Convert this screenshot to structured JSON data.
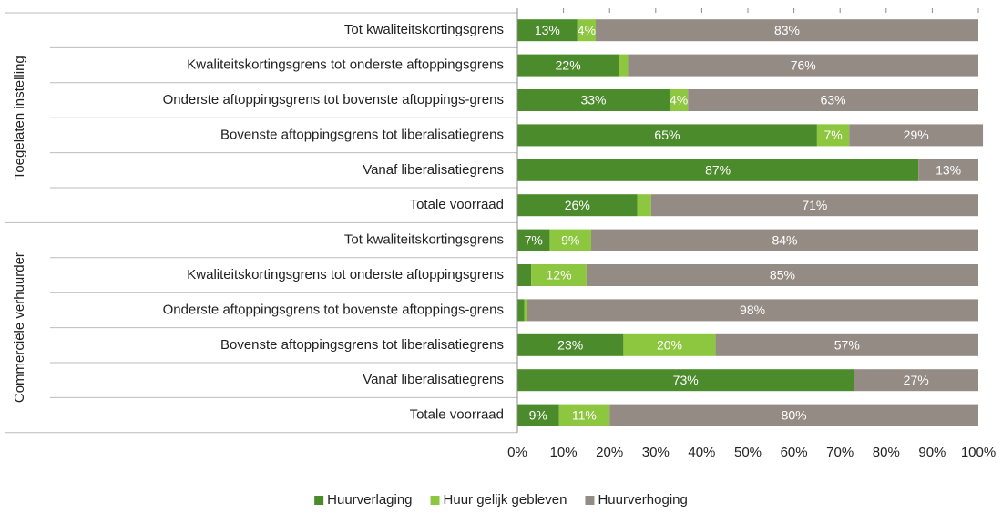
{
  "chart_data": {
    "type": "stacked-bar-horizontal",
    "groups": [
      {
        "label": "Toegelaten instelling",
        "categories": [
          "Tot kwaliteitskortingsgrens",
          "Kwaliteitskortingsgrens tot onderste aftoppingsgrens",
          "Onderste aftoppingsgrens tot bovenste aftoppings-grens",
          "Bovenste aftoppingsgrens tot liberalisatiegrens",
          "Vanaf liberalisatiegrens",
          "Totale voorraad"
        ]
      },
      {
        "label": "Commerciële verhuurder",
        "categories": [
          "Tot kwaliteitskortingsgrens",
          "Kwaliteitskortingsgrens tot onderste aftoppingsgrens",
          "Onderste aftoppingsgrens tot bovenste aftoppings-grens",
          "Bovenste aftoppingsgrens tot liberalisatiegrens",
          "Vanaf liberalisatiegrens",
          "Totale voorraad"
        ]
      }
    ],
    "series": [
      {
        "name": "Huurverlaging",
        "color": "#4b8b2b",
        "values": [
          13,
          22,
          33,
          65,
          87,
          26,
          7,
          3,
          1.5,
          23,
          73,
          9
        ],
        "value_labels": [
          "13%",
          "22%",
          "33%",
          "65%",
          "87%",
          "26%",
          "7%",
          null,
          null,
          "23%",
          "73%",
          "9%"
        ]
      },
      {
        "name": "Huur gelijk gebleven",
        "color": "#8dc63f",
        "values": [
          4,
          2,
          4,
          7,
          0,
          3,
          9,
          12,
          0.5,
          20,
          0,
          11
        ],
        "value_labels": [
          "4%",
          null,
          "4%",
          "7%",
          null,
          null,
          "9%",
          "12%",
          null,
          "20%",
          null,
          "11%"
        ]
      },
      {
        "name": "Huurverhoging",
        "color": "#958b85",
        "values": [
          83,
          76,
          63,
          29,
          13,
          71,
          84,
          85,
          98,
          57,
          27,
          80
        ],
        "value_labels": [
          "83%",
          "76%",
          "63%",
          "29%",
          "13%",
          "71%",
          "84%",
          "85%",
          "98%",
          "57%",
          "27%",
          "80%"
        ]
      }
    ],
    "xlim": [
      0,
      100
    ],
    "xticks": [
      {
        "value": 0,
        "label": "0%"
      },
      {
        "value": 10,
        "label": "10%"
      },
      {
        "value": 20,
        "label": "20%"
      },
      {
        "value": 30,
        "label": "30%"
      },
      {
        "value": 40,
        "label": "40%"
      },
      {
        "value": 50,
        "label": "50%"
      },
      {
        "value": 60,
        "label": "60%"
      },
      {
        "value": 70,
        "label": "70%"
      },
      {
        "value": 80,
        "label": "80%"
      },
      {
        "value": 90,
        "label": "90%"
      },
      {
        "value": 100,
        "label": "100%"
      }
    ],
    "legend": "bottom"
  }
}
